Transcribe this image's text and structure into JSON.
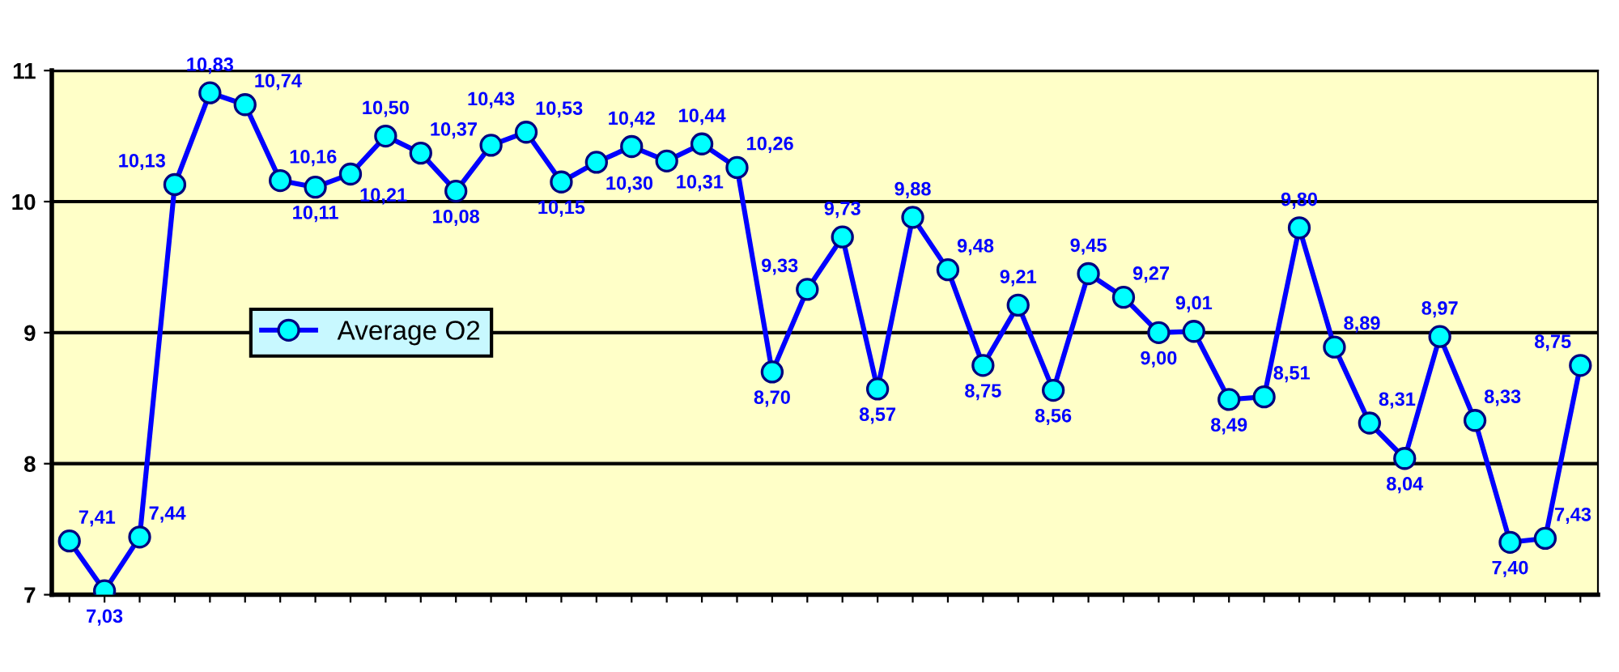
{
  "chart_data": {
    "type": "line",
    "categories": [
      null,
      null,
      null,
      null,
      null,
      null,
      null,
      null,
      null,
      null,
      null,
      null,
      null,
      null,
      null,
      null,
      null,
      null,
      null,
      null,
      null,
      null,
      null,
      null,
      null,
      null,
      null,
      null,
      null,
      null,
      null,
      null,
      null,
      null,
      null,
      null,
      null,
      null,
      null,
      null,
      null,
      null,
      null,
      null
    ],
    "series": [
      {
        "name": "Average O2",
        "color": "#0000ff",
        "values": [
          7.41,
          7.03,
          7.44,
          10.13,
          10.83,
          10.74,
          10.16,
          10.11,
          10.21,
          10.5,
          10.37,
          10.08,
          10.43,
          10.53,
          10.15,
          10.3,
          10.42,
          10.31,
          10.44,
          10.26,
          8.7,
          9.33,
          9.73,
          8.57,
          9.88,
          9.48,
          8.75,
          9.21,
          8.56,
          9.45,
          9.27,
          9.0,
          9.01,
          8.49,
          8.51,
          9.8,
          8.89,
          8.31,
          8.04,
          8.97,
          8.33,
          7.4,
          7.43,
          8.75
        ],
        "value_labels": [
          "7,41",
          "7,03",
          "7,44",
          "10,13",
          "10,83",
          "10,74",
          "10,16",
          "10,11",
          "10,21",
          "10,50",
          "10,37",
          "10,08",
          "10,43",
          "10,53",
          "10,15",
          "10,30",
          "10,42",
          "10,31",
          "10,44",
          "10,26",
          "8,70",
          "9,33",
          "9,73",
          "8,57",
          "9,88",
          "9,48",
          "8,75",
          "9,21",
          "8,56",
          "9,45",
          "9,27",
          "9,00",
          "9,01",
          "8,49",
          "8,51",
          "9,80",
          "8,89",
          "8,31",
          "8,04",
          "8,97",
          "8,33",
          "7,40",
          "7,43",
          "8,75"
        ]
      }
    ],
    "ylim": [
      7,
      11
    ],
    "yticks": [
      7,
      8,
      9,
      10,
      11
    ],
    "grid": "y",
    "legend": "left",
    "marker": "circle",
    "line_style": "solid"
  }
}
